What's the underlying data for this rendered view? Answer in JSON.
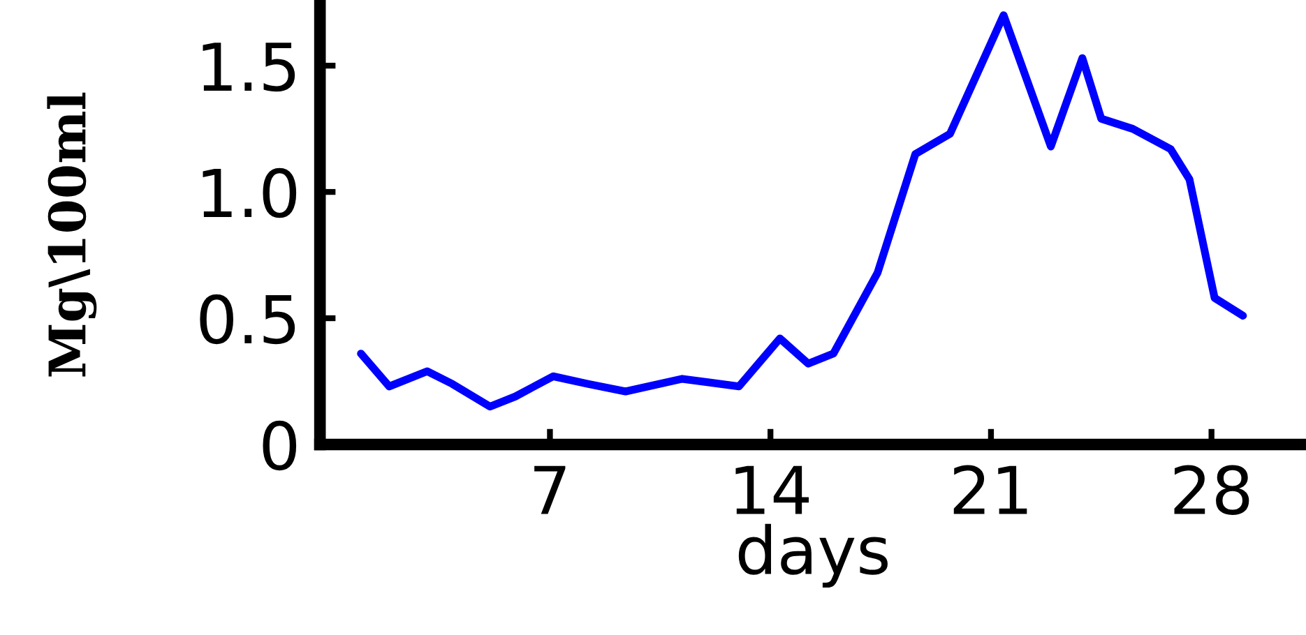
{
  "chart_data": {
    "type": "line",
    "xlabel": "days",
    "ylabel": "Mg\\100ml",
    "x": [
      1.0,
      1.9,
      3.1,
      3.9,
      5.1,
      5.9,
      7.1,
      8.2,
      9.4,
      11.2,
      13.0,
      14.3,
      15.2,
      16.0,
      17.4,
      18.6,
      19.7,
      21.4,
      22.9,
      23.9,
      24.5,
      25.5,
      26.7,
      27.3,
      28.1,
      29.0
    ],
    "series": [
      {
        "color": "#0000ff",
        "values": [
          0.36,
          0.23,
          0.29,
          0.24,
          0.15,
          0.19,
          0.27,
          0.24,
          0.21,
          0.26,
          0.23,
          0.42,
          0.32,
          0.36,
          0.68,
          1.15,
          1.23,
          1.7,
          1.18,
          1.53,
          1.29,
          1.25,
          1.17,
          1.05,
          0.58,
          0.51
        ]
      }
    ],
    "xlim": [
      -0.3,
      31
    ],
    "ylim": [
      0,
      1.76
    ],
    "xticks": [
      7,
      14,
      21,
      28
    ],
    "yticks": [
      0,
      0.5,
      {
        "value": 1,
        "label": "1.0"
      },
      1.5
    ],
    "grid": false,
    "legend": false,
    "marker": "none",
    "line_style": "solid"
  }
}
